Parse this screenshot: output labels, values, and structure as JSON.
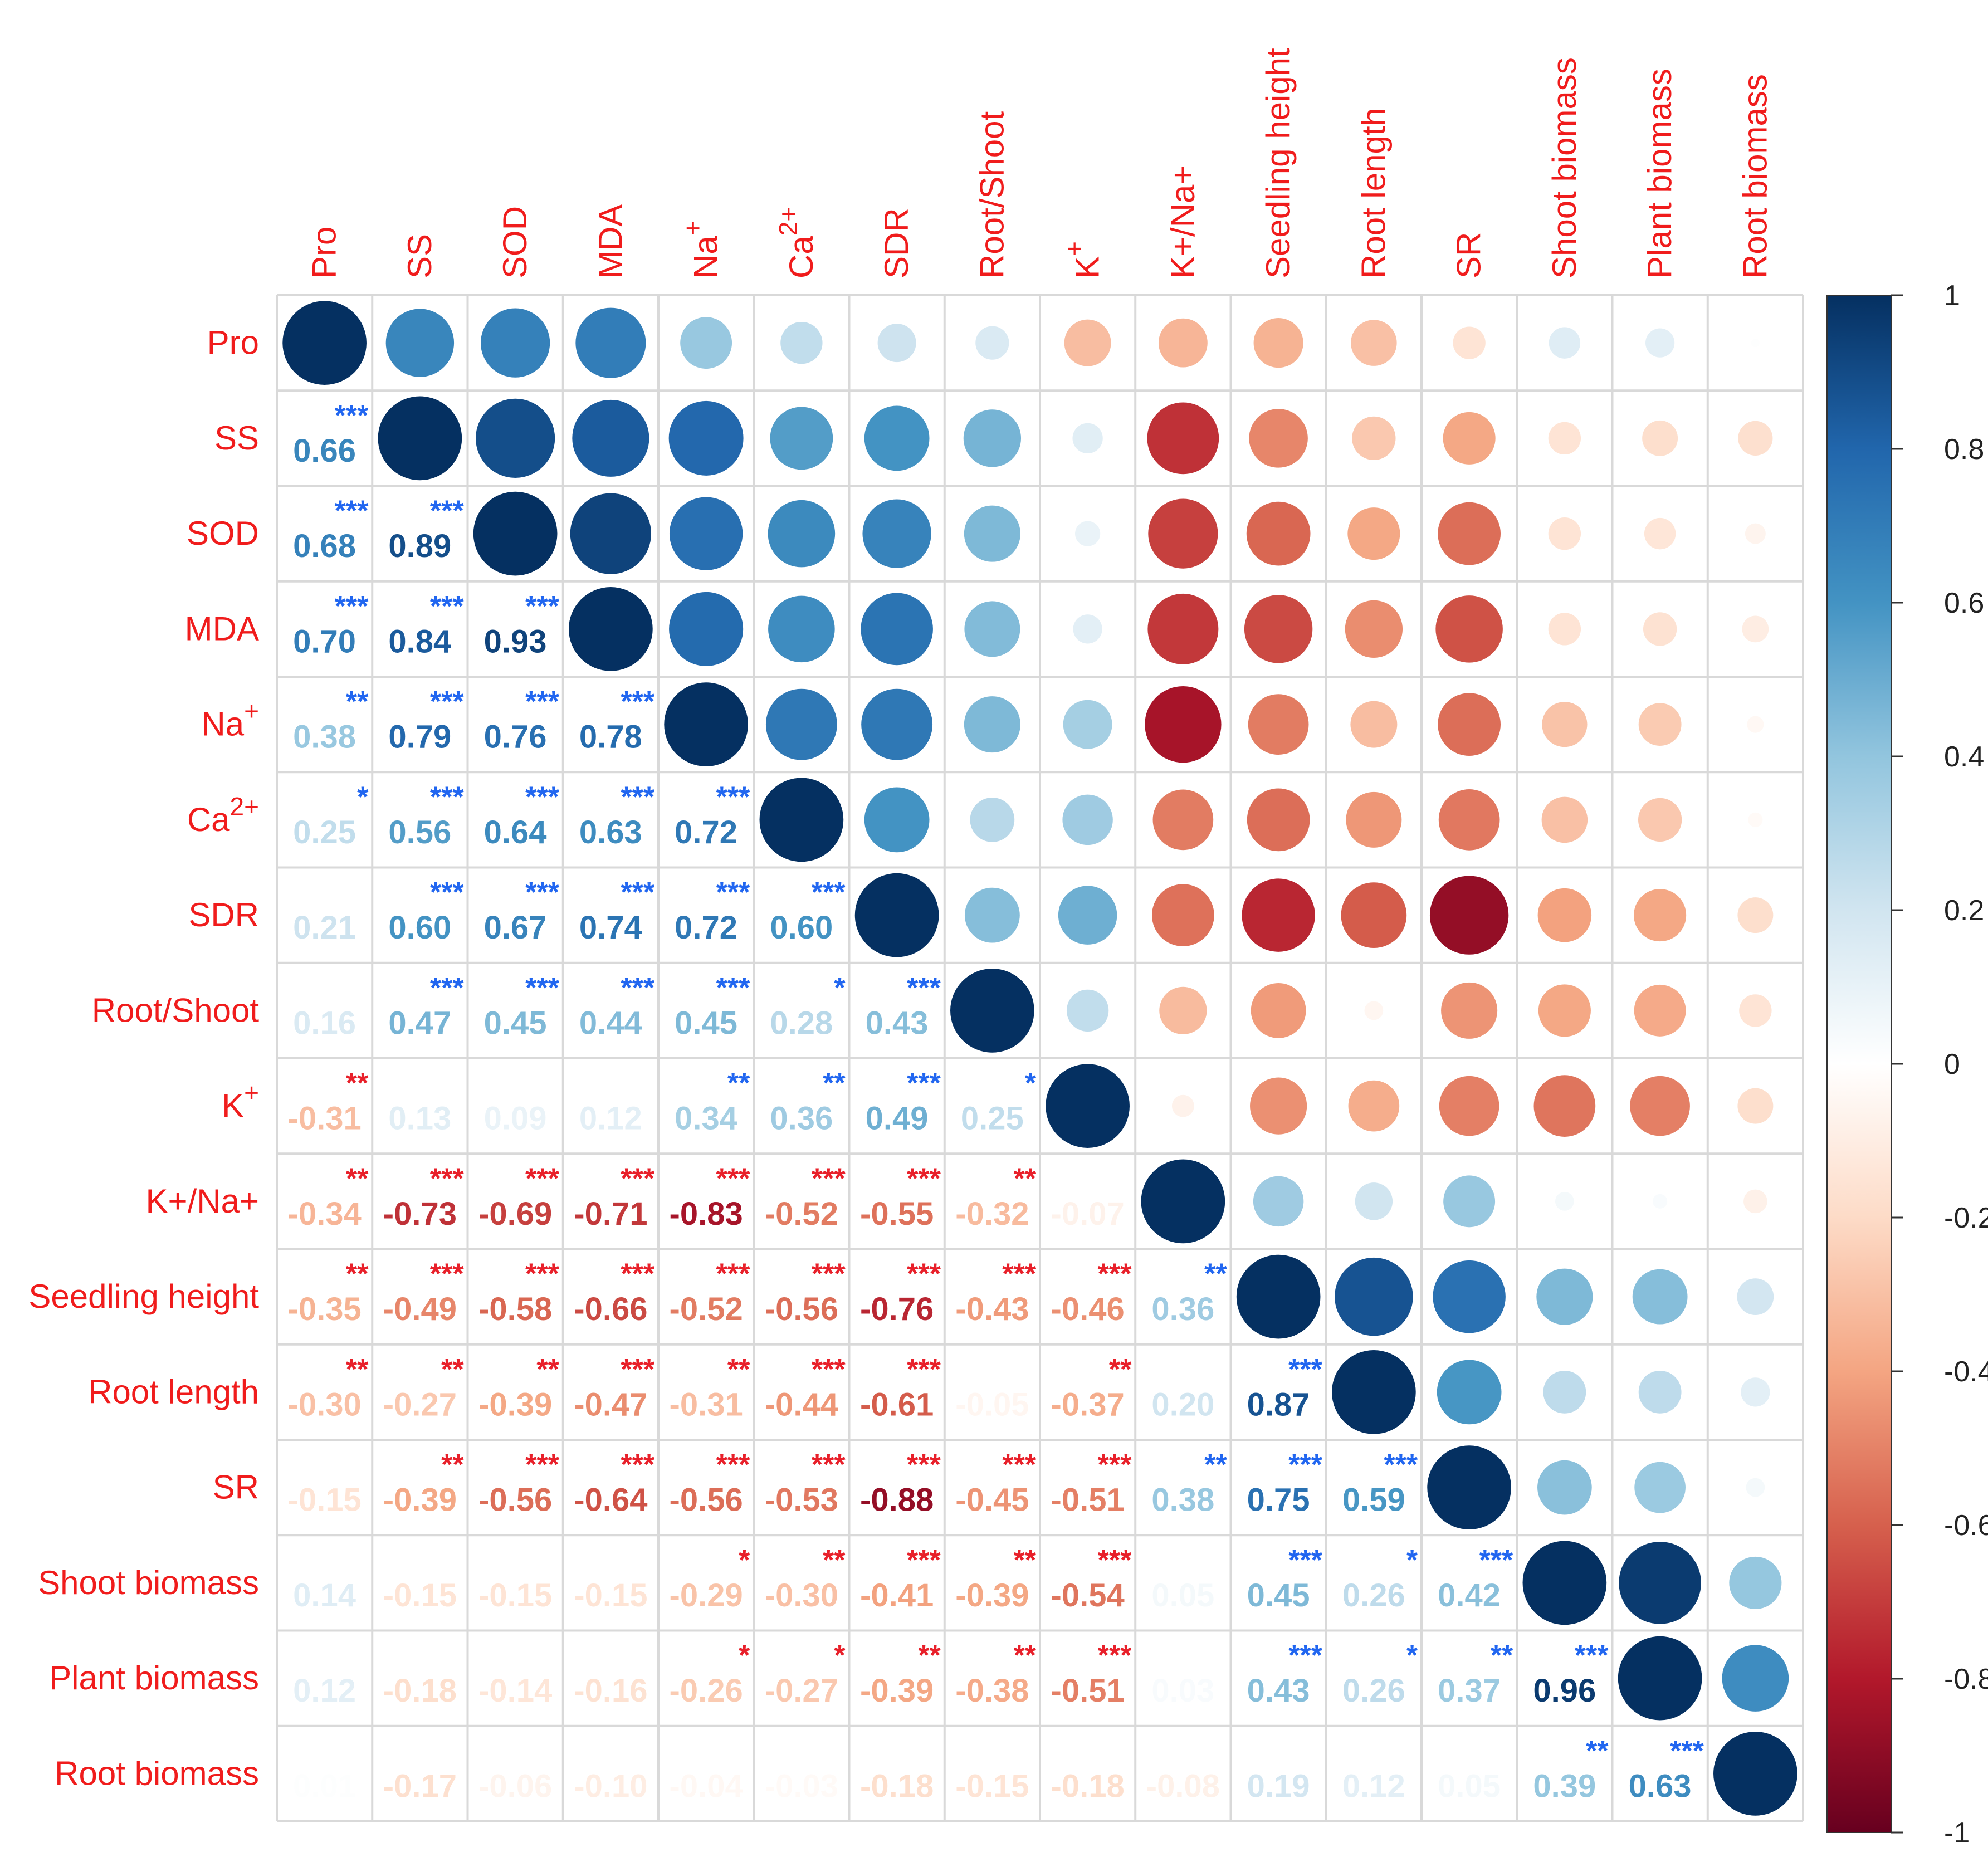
{
  "chart_data": {
    "type": "heatmap",
    "style": "correlation matrix: circles (upper triangle), coefficients with significance stars (lower triangle)",
    "variables": [
      "Pro",
      "SS",
      "SOD",
      "MDA",
      "Na+",
      "Ca2+",
      "SDR",
      "Root/Shoot",
      "K+",
      "K+/Na+",
      "Seedling height",
      "Root length",
      "SR",
      "Shoot biomass",
      "Plant biomass",
      "Root biomass"
    ],
    "labels": [
      {
        "base": "Pro",
        "sup": ""
      },
      {
        "base": "SS",
        "sup": ""
      },
      {
        "base": "SOD",
        "sup": ""
      },
      {
        "base": "MDA",
        "sup": ""
      },
      {
        "base": "Na",
        "sup": "+"
      },
      {
        "base": "Ca",
        "sup": "2+"
      },
      {
        "base": "SDR",
        "sup": ""
      },
      {
        "base": "Root/Shoot",
        "sup": ""
      },
      {
        "base": "K",
        "sup": "+"
      },
      {
        "base": "K+/Na+",
        "sup": ""
      },
      {
        "base": "Seedling height",
        "sup": ""
      },
      {
        "base": "Root length",
        "sup": ""
      },
      {
        "base": "SR",
        "sup": ""
      },
      {
        "base": "Shoot biomass",
        "sup": ""
      },
      {
        "base": "Plant biomass",
        "sup": ""
      },
      {
        "base": "Root biomass",
        "sup": ""
      }
    ],
    "matrix": [
      [
        1,
        0.66,
        0.68,
        0.7,
        0.38,
        0.25,
        0.21,
        0.16,
        -0.31,
        -0.34,
        -0.35,
        -0.3,
        -0.15,
        0.14,
        0.12,
        0.01
      ],
      [
        0.66,
        1,
        0.89,
        0.84,
        0.79,
        0.56,
        0.6,
        0.47,
        0.13,
        -0.73,
        -0.49,
        -0.27,
        -0.39,
        -0.15,
        -0.18,
        -0.17
      ],
      [
        0.68,
        0.89,
        1,
        0.93,
        0.76,
        0.64,
        0.67,
        0.45,
        0.09,
        -0.69,
        -0.58,
        -0.39,
        -0.56,
        -0.15,
        -0.14,
        -0.06
      ],
      [
        0.7,
        0.84,
        0.93,
        1,
        0.78,
        0.63,
        0.74,
        0.44,
        0.12,
        -0.71,
        -0.66,
        -0.47,
        -0.64,
        -0.15,
        -0.16,
        -0.1
      ],
      [
        0.38,
        0.79,
        0.76,
        0.78,
        1,
        0.72,
        0.72,
        0.45,
        0.34,
        -0.83,
        -0.52,
        -0.31,
        -0.56,
        -0.29,
        -0.26,
        -0.04
      ],
      [
        0.25,
        0.56,
        0.64,
        0.63,
        0.72,
        1,
        0.6,
        0.28,
        0.36,
        -0.52,
        -0.56,
        -0.44,
        -0.53,
        -0.3,
        -0.27,
        -0.03
      ],
      [
        0.21,
        0.6,
        0.67,
        0.74,
        0.72,
        0.6,
        1,
        0.43,
        0.49,
        -0.55,
        -0.76,
        -0.61,
        -0.88,
        -0.41,
        -0.39,
        -0.18
      ],
      [
        0.16,
        0.47,
        0.45,
        0.44,
        0.45,
        0.28,
        0.43,
        1,
        0.25,
        -0.32,
        -0.43,
        -0.05,
        -0.45,
        -0.39,
        -0.38,
        -0.15
      ],
      [
        -0.31,
        0.13,
        0.09,
        0.12,
        0.34,
        0.36,
        0.49,
        0.25,
        1,
        -0.07,
        -0.46,
        -0.37,
        -0.51,
        -0.54,
        -0.51,
        -0.18
      ],
      [
        -0.34,
        -0.73,
        -0.69,
        -0.71,
        -0.83,
        -0.52,
        -0.55,
        -0.32,
        -0.07,
        1,
        0.36,
        0.2,
        0.38,
        0.05,
        0.03,
        -0.08
      ],
      [
        -0.35,
        -0.49,
        -0.58,
        -0.66,
        -0.52,
        -0.56,
        -0.76,
        -0.43,
        -0.46,
        0.36,
        1,
        0.87,
        0.75,
        0.45,
        0.43,
        0.19
      ],
      [
        -0.3,
        -0.27,
        -0.39,
        -0.47,
        -0.31,
        -0.44,
        -0.61,
        -0.05,
        -0.37,
        0.2,
        0.87,
        1,
        0.59,
        0.26,
        0.26,
        0.12
      ],
      [
        -0.15,
        -0.39,
        -0.56,
        -0.64,
        -0.56,
        -0.53,
        -0.88,
        -0.45,
        -0.51,
        0.38,
        0.75,
        0.59,
        1,
        0.42,
        0.37,
        0.05
      ],
      [
        0.14,
        -0.15,
        -0.15,
        -0.15,
        -0.29,
        -0.3,
        -0.41,
        -0.39,
        -0.54,
        0.05,
        0.45,
        0.26,
        0.42,
        1,
        0.96,
        0.39
      ],
      [
        0.12,
        -0.18,
        -0.14,
        -0.16,
        -0.26,
        -0.27,
        -0.39,
        -0.38,
        -0.51,
        0.03,
        0.43,
        0.26,
        0.37,
        0.96,
        1,
        0.63
      ],
      [
        0.01,
        -0.17,
        -0.06,
        -0.1,
        -0.04,
        -0.03,
        -0.18,
        -0.15,
        -0.18,
        -0.08,
        0.19,
        0.12,
        0.05,
        0.39,
        0.63,
        1
      ]
    ],
    "significance": [
      [
        "",
        "***",
        "***",
        "***",
        "**",
        "*",
        "",
        "",
        "**",
        "**",
        "**",
        "**",
        "",
        "",
        "",
        ""
      ],
      [
        "***",
        "",
        "***",
        "***",
        "***",
        "***",
        "***",
        "***",
        "",
        "***",
        "***",
        "**",
        "**",
        "",
        "",
        ""
      ],
      [
        "***",
        "***",
        "",
        "***",
        "***",
        "***",
        "***",
        "***",
        "",
        "***",
        "***",
        "**",
        "***",
        "",
        "",
        ""
      ],
      [
        "***",
        "***",
        "***",
        "",
        "***",
        "***",
        "***",
        "***",
        "",
        "***",
        "***",
        "***",
        "***",
        "",
        "",
        ""
      ],
      [
        "**",
        "***",
        "***",
        "***",
        "",
        "***",
        "***",
        "***",
        "**",
        "***",
        "***",
        "**",
        "***",
        "*",
        "*",
        ""
      ],
      [
        "*",
        "***",
        "***",
        "***",
        "***",
        "",
        "***",
        "*",
        "**",
        "***",
        "***",
        "***",
        "***",
        "**",
        "*",
        ""
      ],
      [
        "",
        "***",
        "***",
        "***",
        "***",
        "***",
        "",
        "***",
        "***",
        "***",
        "***",
        "***",
        "***",
        "***",
        "**",
        ""
      ],
      [
        "",
        "***",
        "***",
        "***",
        "***",
        "*",
        "***",
        "",
        "*",
        "**",
        "***",
        "",
        "***",
        "**",
        "**",
        ""
      ],
      [
        "**",
        "",
        "",
        "",
        "**",
        "**",
        "***",
        "*",
        "",
        "",
        "***",
        "**",
        "***",
        "***",
        "***",
        ""
      ],
      [
        "**",
        "***",
        "***",
        "***",
        "***",
        "***",
        "***",
        "**",
        "",
        "",
        "**",
        "",
        "**",
        "",
        "",
        ""
      ],
      [
        "**",
        "***",
        "***",
        "***",
        "***",
        "***",
        "***",
        "***",
        "***",
        "**",
        "",
        "***",
        "***",
        "***",
        "***",
        ""
      ],
      [
        "**",
        "**",
        "**",
        "***",
        "**",
        "***",
        "***",
        "",
        "**",
        "",
        "***",
        "",
        "***",
        "*",
        "*",
        ""
      ],
      [
        "",
        "**",
        "***",
        "***",
        "***",
        "***",
        "***",
        "***",
        "***",
        "**",
        "***",
        "***",
        "",
        "***",
        "**",
        ""
      ],
      [
        "",
        "",
        "",
        "",
        "*",
        "**",
        "***",
        "**",
        "***",
        "",
        "***",
        "*",
        "***",
        "",
        "***",
        "**"
      ],
      [
        "",
        "",
        "",
        "",
        "*",
        "*",
        "**",
        "**",
        "***",
        "",
        "***",
        "*",
        "**",
        "***",
        "",
        "***"
      ],
      [
        "",
        "",
        "",
        "",
        "",
        "",
        "",
        "",
        "",
        "",
        "",
        "",
        "",
        "**",
        "***",
        ""
      ]
    ],
    "colorbar": {
      "ticks": [
        "1",
        "0.8",
        "0.6",
        "0.4",
        "0.2",
        "0",
        "-0.2",
        "-0.4",
        "-0.6",
        "-0.8",
        "-1"
      ],
      "range": [
        -1,
        1
      ]
    },
    "colors": {
      "negative_strong": "#67001f",
      "negative_mid": "#d6604d",
      "neutral": "#ffffff",
      "positive_mid": "#4393c3",
      "positive_strong": "#053061",
      "label": "#f01c1c",
      "stars_positive": "#2166f0",
      "stars_negative": "#e8202a"
    }
  }
}
